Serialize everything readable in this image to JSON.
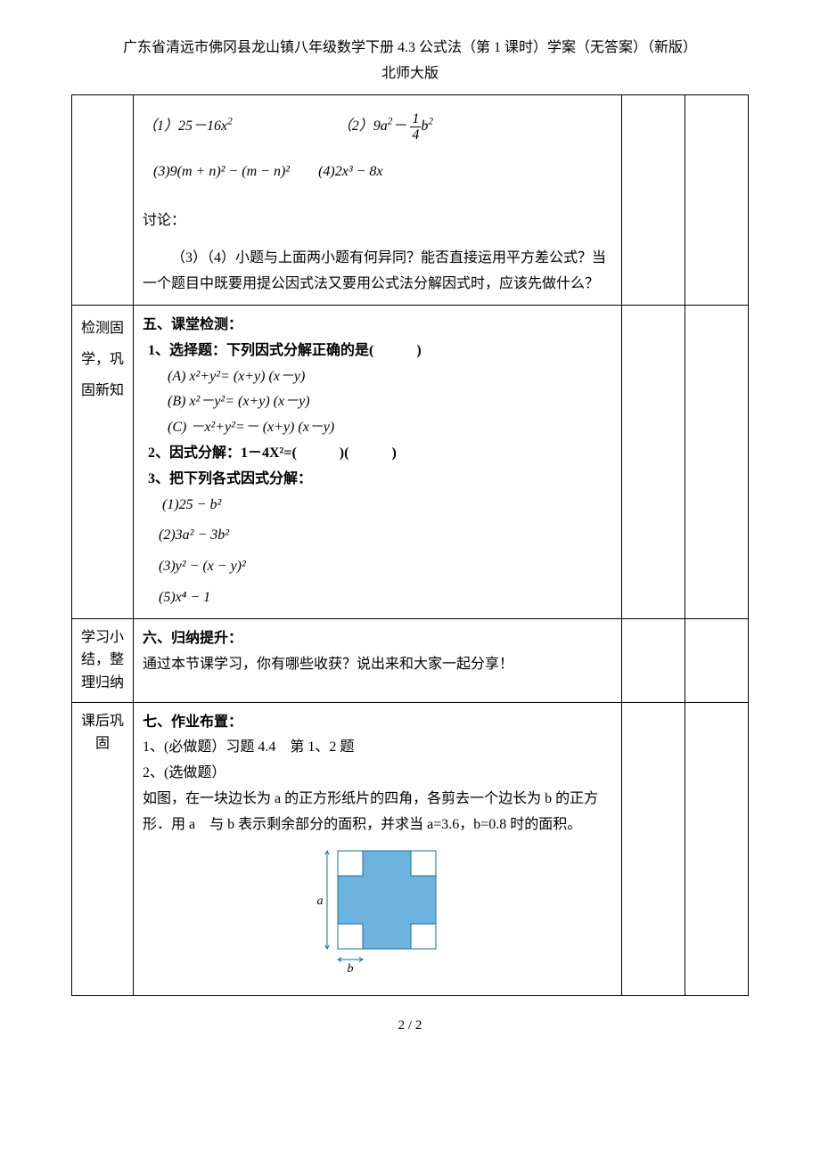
{
  "header": {
    "line1": "广东省清远市佛冈县龙山镇八年级数学下册 4.3 公式法（第 1 课时）学案（无答案）（新版）",
    "line2": "北师大版"
  },
  "row_top": {
    "item1_prefix": "（1）25－16x",
    "item1_sup": "2",
    "item2_prefix": "（2）9a",
    "item2_sup": "2",
    "item2_mid": "－",
    "frac_num": "1",
    "frac_den": "4",
    "frac_after": "b",
    "frac_after_sup": "2",
    "line3": "(3)9(m + n)² − (m − n)²　　(4)2x³ − 8x",
    "discuss_label": "讨论：",
    "discuss_body": "（3）（4）小题与上面两小题有何异同？能否直接运用平方差公式？当一个题目中既要用提公因式法又要用公式法分解因式时，应该先做什么？"
  },
  "row_test": {
    "left": "检测固学，巩固新知",
    "title": "五、课堂检测：",
    "q1_label": "1、选择题：下列因式分解正确的是(　　　)",
    "q1a": "(A) x²+y²= (x+y) (x－y)",
    "q1b": "(B) x²－y²= (x+y) (x－y)",
    "q1c": "(C) －x²+y²=－ (x+y) (x－y)",
    "q2": "2、因式分解：1－4X²=(　　　)(　　　)",
    "q3_label": "3、把下列各式因式分解：",
    "q3_1": "(1)25 − b²",
    "q3_2": "(2)3a² − 3b²",
    "q3_3": "(3)y² − (x − y)²",
    "q3_5": "(5)x⁴ − 1"
  },
  "row_summary": {
    "left": "学习小结，整理归纳",
    "title": "六、归纳提升：",
    "body": "通过本节课学习，你有哪些收获？说出来和大家一起分享！"
  },
  "row_hw": {
    "left": "课后巩固",
    "title": "七、作业布置：",
    "l1": "1、(必做题）习题 4.4　第 1、2 题",
    "l2": "2、(选做题）",
    "l3": "如图，在一块边长为 a 的正方形纸片的四角，各剪去一个边长为 b 的正方形．用 a　与 b 表示剩余部分的面积，并求当 a=3.6，b=0.8 时的面积。",
    "diagram": {
      "outer_size": 110,
      "inner_size": 28,
      "fill": "#6db3e0",
      "stroke": "#1a6fa0",
      "label_a": "a",
      "label_b": "b"
    }
  },
  "footer": "2 / 2"
}
